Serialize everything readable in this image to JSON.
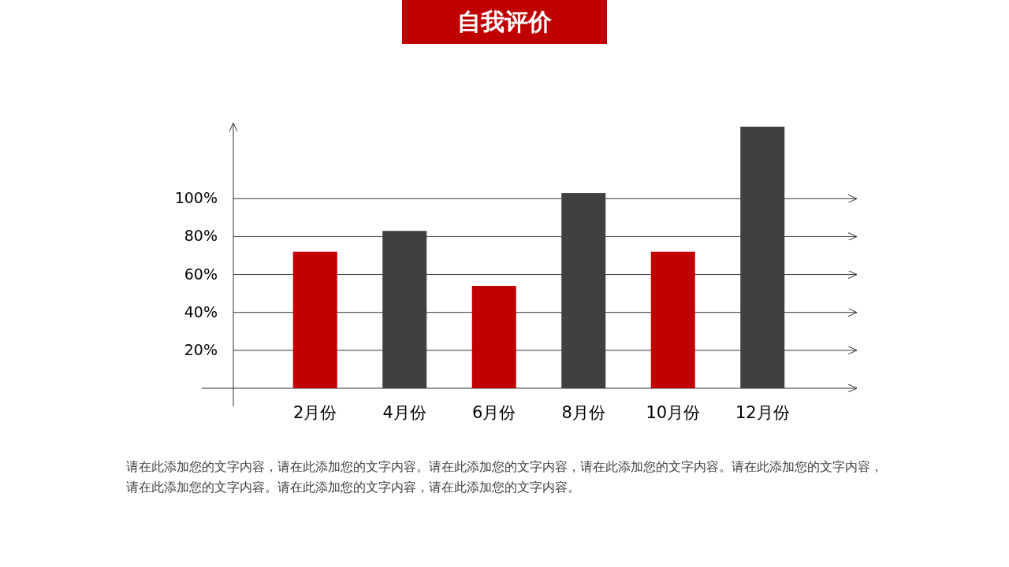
{
  "chart_data": {
    "type": "bar",
    "title": "自我评价",
    "categories": [
      "2月份",
      "4月份",
      "6月份",
      "8月份",
      "10月份",
      "12月份"
    ],
    "values": [
      72,
      83,
      54,
      103,
      72,
      138
    ],
    "colors": [
      "#c00000",
      "#404040",
      "#c00000",
      "#404040",
      "#c00000",
      "#404040"
    ],
    "ylim": [
      0,
      140
    ],
    "yticks": [
      {
        "value": 20,
        "label": "20%"
      },
      {
        "value": 40,
        "label": "40%"
      },
      {
        "value": 60,
        "label": "60%"
      },
      {
        "value": 80,
        "label": "80%"
      },
      {
        "value": 100,
        "label": "100%"
      }
    ],
    "grid": "y",
    "annotations": [
      "请在此添加您的文字内容，请在此添加您的文字内容。请在此添加您的文字内容，请在此添加您的文字内容。请在此添加您的文字内容，请在此添加您的文字内容。请在此添加您的文字内容，请在此添加您的文字内容。"
    ]
  }
}
